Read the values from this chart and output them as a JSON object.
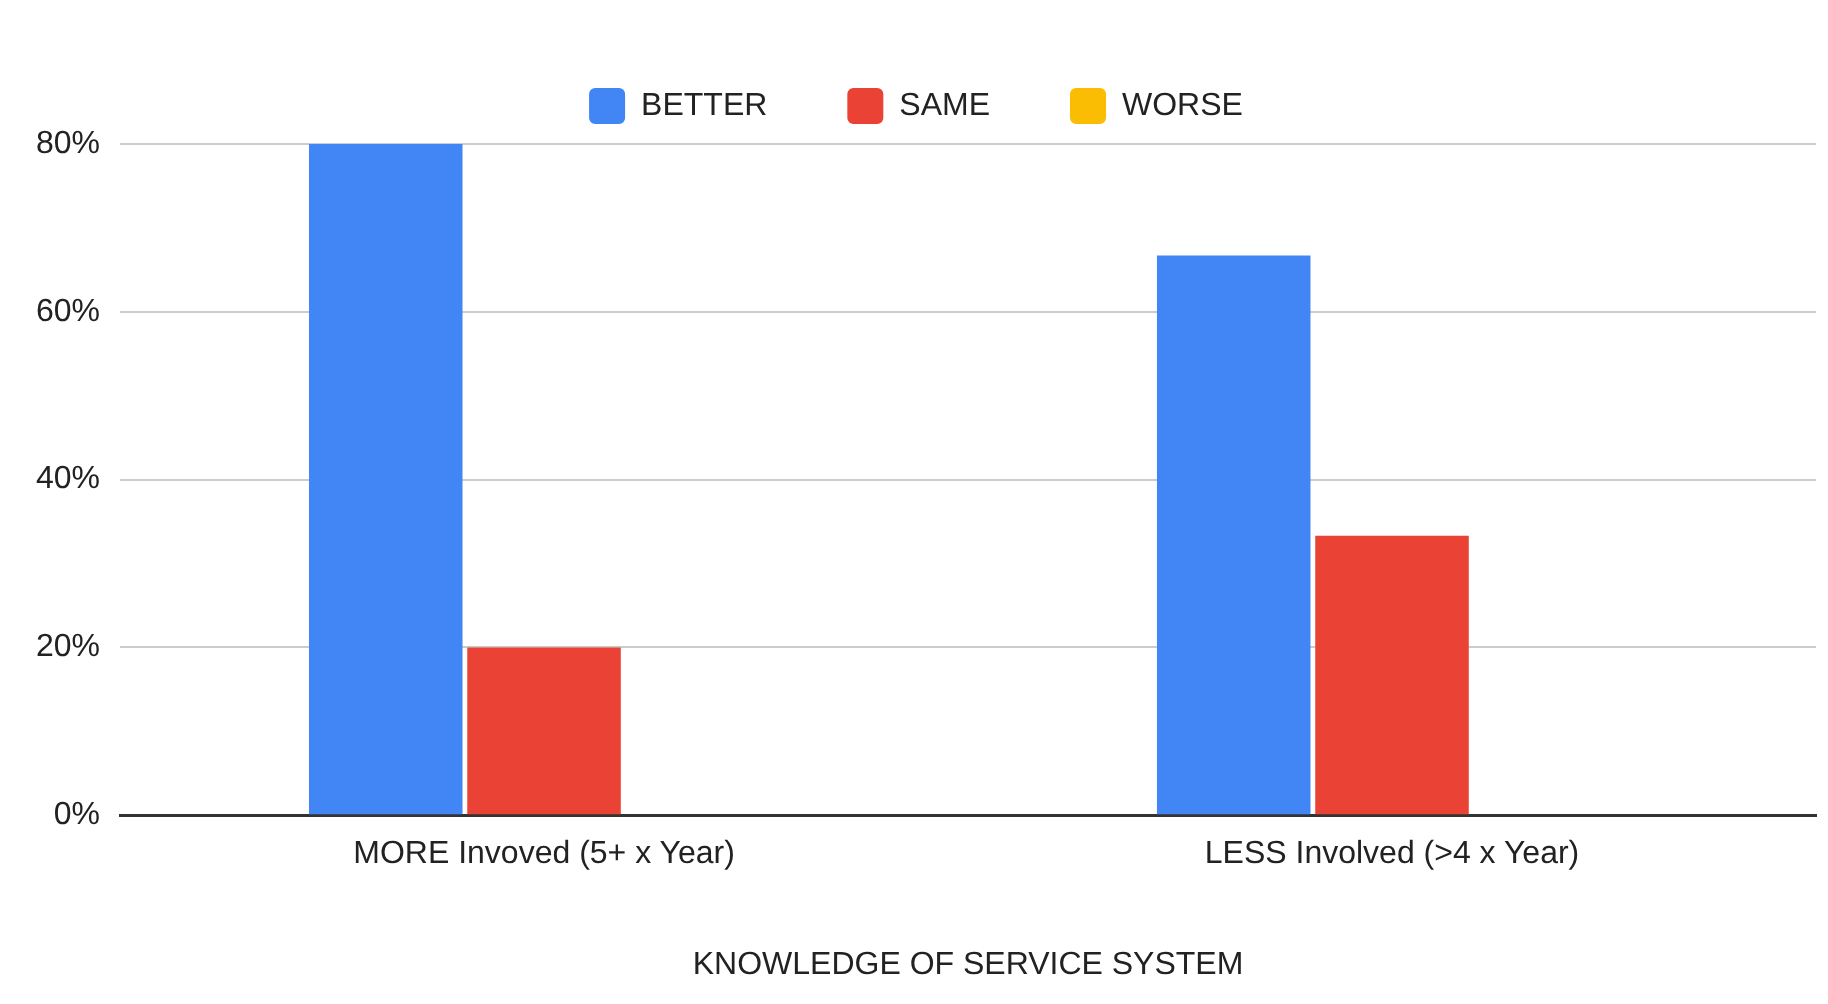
{
  "chart_data": {
    "type": "bar",
    "xlabel": "KNOWLEDGE OF SERVICE SYSTEM",
    "categories": [
      "MORE Invoved (5+ x Year)",
      "LESS Involved (>4 x Year)"
    ],
    "series": [
      {
        "name": "BETTER",
        "color": "#4285f4",
        "values": [
          80,
          66.7
        ]
      },
      {
        "name": "SAME",
        "color": "#ea4335",
        "values": [
          20,
          33.3
        ]
      },
      {
        "name": "WORSE",
        "color": "#fbbc04",
        "values": [
          0,
          0
        ]
      }
    ],
    "ylim": [
      0,
      80
    ],
    "yticks": [
      {
        "value": 0,
        "label": "0%"
      },
      {
        "value": 20,
        "label": "20%"
      },
      {
        "value": 40,
        "label": "40%"
      },
      {
        "value": 60,
        "label": "60%"
      },
      {
        "value": 80,
        "label": "80%"
      }
    ],
    "grid": "y",
    "legend": "top"
  }
}
